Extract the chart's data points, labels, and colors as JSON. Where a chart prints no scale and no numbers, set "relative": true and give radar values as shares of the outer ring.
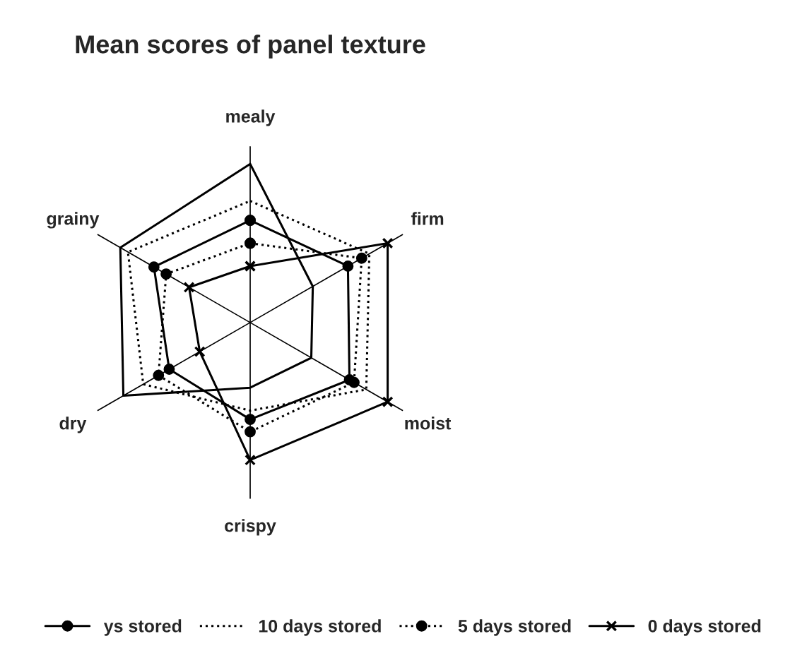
{
  "chart_data": {
    "type": "radar",
    "title": "Mean scores of panel texture",
    "relative": true,
    "categories": [
      "mealy",
      "firm",
      "moist",
      "crispy",
      "dry",
      "grainy"
    ],
    "series": [
      {
        "color": "#000000",
        "line_style": "solid",
        "marker": "none",
        "values": [
          0.9,
          0.41,
          0.4,
          0.37,
          0.83,
          0.85
        ]
      },
      {
        "name": "ys stored",
        "color": "#000000",
        "line_style": "solid",
        "marker": "circle",
        "values": [
          0.58,
          0.64,
          0.65,
          0.55,
          0.53,
          0.63
        ]
      },
      {
        "name": "10 days stored",
        "color": "#000000",
        "line_style": "dotted",
        "marker": "none",
        "values": [
          0.69,
          0.78,
          0.76,
          0.5,
          0.7,
          0.8
        ]
      },
      {
        "name": "5 days stored",
        "color": "#000000",
        "line_style": "dotted",
        "marker": "circle",
        "values": [
          0.45,
          0.73,
          0.68,
          0.62,
          0.6,
          0.55
        ]
      },
      {
        "name": "0 days stored",
        "color": "#000000",
        "line_style": "solid",
        "marker": "cross",
        "values": [
          0.32,
          0.9,
          0.9,
          0.78,
          0.33,
          0.4
        ]
      }
    ],
    "legend": "bottom",
    "grid": "x"
  }
}
